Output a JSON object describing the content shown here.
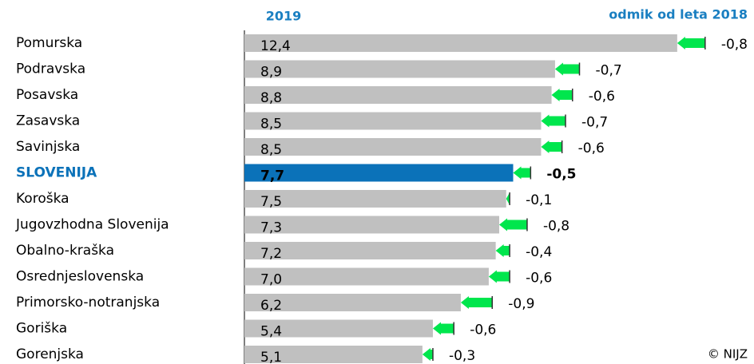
{
  "chart_data": {
    "type": "bar-change",
    "categories": [
      "Pomurska",
      "Podravska",
      "Posavska",
      "Zasavska",
      "Savinjska",
      "SLOVENIJA",
      "Koroška",
      "Jugovzhodna Slovenija",
      "Obalno-kraška",
      "Osrednjeslovenska",
      "Primorsko-notranjska",
      "Goriška",
      "Gorenjska"
    ],
    "series": [
      {
        "name": "2019",
        "color": "#c0c0c0",
        "highlight_color": "#0b72b9",
        "values": [
          12.4,
          8.9,
          8.8,
          8.5,
          8.5,
          7.7,
          7.5,
          7.3,
          7.2,
          7.0,
          6.2,
          5.4,
          5.1
        ],
        "value_labels": [
          "12,4",
          "8,9",
          "8,8",
          "8,5",
          "8,5",
          "7,7",
          "7,5",
          "7,3",
          "7,2",
          "7,0",
          "6,2",
          "5,4",
          "5,1"
        ]
      },
      {
        "name": "odmik od leta 2018",
        "color": "#00e64d",
        "values": [
          -0.8,
          -0.7,
          -0.6,
          -0.7,
          -0.6,
          -0.5,
          -0.1,
          -0.8,
          -0.4,
          -0.6,
          -0.9,
          -0.6,
          -0.3
        ],
        "value_labels": [
          "-0,8",
          "-0,7",
          "-0,6",
          "-0,7",
          "-0,6",
          "-0,5",
          "-0,1",
          "-0,8",
          "-0,4",
          "-0,6",
          "-0,9",
          "-0,6",
          "-0,3"
        ]
      }
    ],
    "highlight_index": 5,
    "xlim": [
      0,
      14.6
    ],
    "source": "© NIJZ"
  }
}
